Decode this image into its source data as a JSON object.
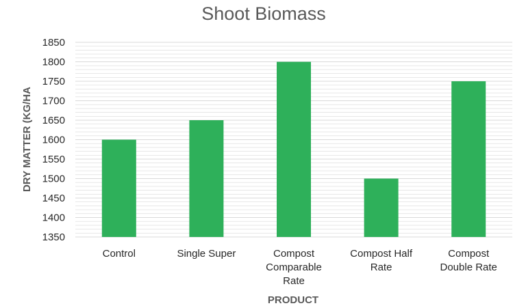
{
  "chart_data": {
    "type": "bar",
    "title": "Shoot Biomass",
    "xlabel": "PRODUCT",
    "ylabel": "DRY MATTER (KG/HA",
    "categories": [
      "Control",
      "Single Super",
      "Compost Comparable Rate",
      "Compost Half Rate",
      "Compost Double Rate"
    ],
    "category_lines": [
      [
        "Control"
      ],
      [
        "Single Super"
      ],
      [
        "Compost",
        "Comparable",
        "Rate"
      ],
      [
        "Compost Half",
        "Rate"
      ],
      [
        "Compost",
        "Double Rate"
      ]
    ],
    "values": [
      1600,
      1650,
      1800,
      1500,
      1750
    ],
    "ylim": [
      1350,
      1850
    ],
    "yticks": [
      1350,
      1400,
      1450,
      1500,
      1550,
      1600,
      1650,
      1700,
      1750,
      1800,
      1850
    ],
    "grid": true,
    "legend": "none",
    "colors": {
      "bar": "#2eb05a",
      "grid": "#d9d9d9",
      "text": "#262626",
      "title": "#595959"
    }
  }
}
